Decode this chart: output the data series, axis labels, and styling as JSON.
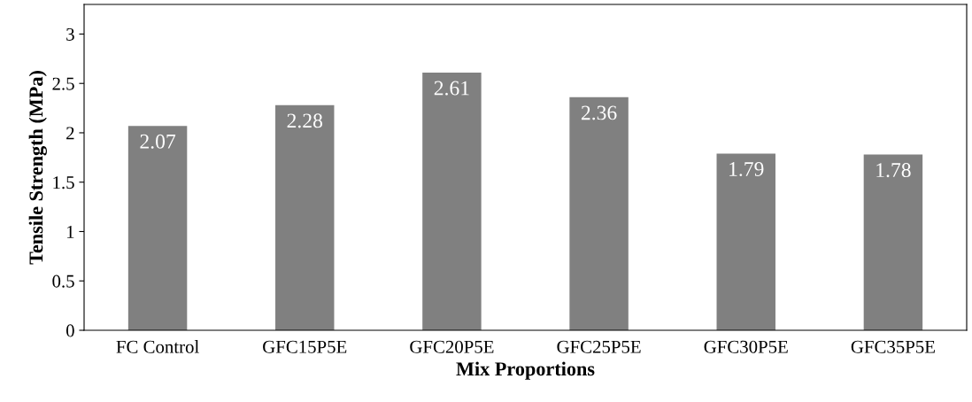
{
  "chart_data": {
    "type": "bar",
    "xlabel": "Mix Proportions",
    "ylabel": "Tensile Strength (MPa)",
    "categories": [
      "FC Control",
      "GFC15P5E",
      "GFC20P5E",
      "GFC25P5E",
      "GFC30P5E",
      "GFC35P5E"
    ],
    "values": [
      2.07,
      2.28,
      2.61,
      2.36,
      1.79,
      1.78
    ],
    "color": "#808080",
    "ylim": [
      0,
      3.3
    ],
    "yticks": [
      0,
      0.5,
      1,
      1.5,
      2,
      2.5,
      3
    ],
    "grid": false,
    "data_labels": true
  }
}
